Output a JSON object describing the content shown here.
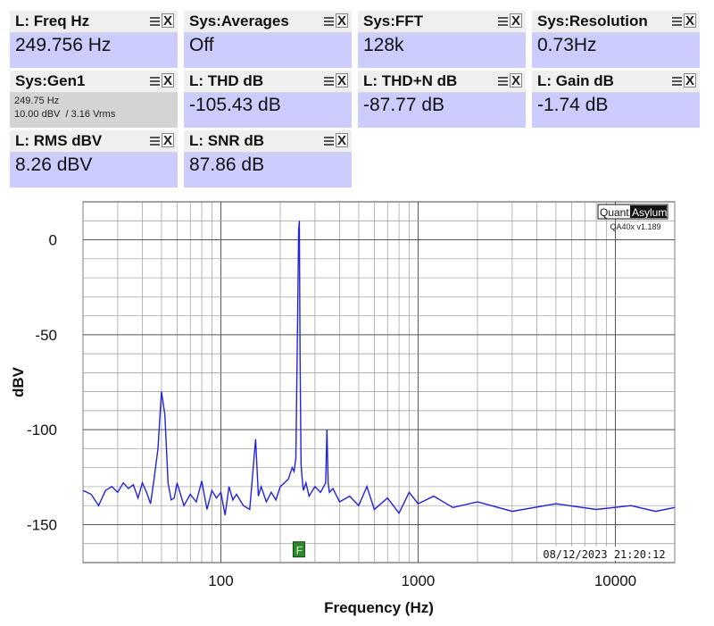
{
  "tiles": [
    {
      "id": "freq",
      "title": "L: Freq Hz",
      "value": "249.756 Hz"
    },
    {
      "id": "avg",
      "title": "Sys:Averages",
      "value": "Off"
    },
    {
      "id": "fft",
      "title": "Sys:FFT",
      "value": "128k"
    },
    {
      "id": "res",
      "title": "Sys:Resolution",
      "value": "0.73Hz"
    },
    {
      "id": "gen",
      "title": "Sys:Gen1",
      "line1": "249.75 Hz",
      "line2": "10.00 dBV  / 3.16 Vrms"
    },
    {
      "id": "thd",
      "title": "L: THD dB",
      "value": "-105.43 dB"
    },
    {
      "id": "thdn",
      "title": "L: THD+N dB",
      "value": "-87.77 dB"
    },
    {
      "id": "gain",
      "title": "L: Gain dB",
      "value": "-1.74 dB"
    },
    {
      "id": "rms",
      "title": "L: RMS dBV",
      "value": "8.26 dBV"
    },
    {
      "id": "snr",
      "title": "L: SNR dB",
      "value": "87.86 dB"
    }
  ],
  "tile_icons": {
    "menu": "hamburger-icon",
    "close": "close-icon",
    "close_glyph": "X"
  },
  "chart_data": {
    "type": "line",
    "xlabel": "Frequency (Hz)",
    "ylabel": "dBV",
    "x_scale": "log",
    "xlim": [
      20,
      20000
    ],
    "ylim": [
      -170,
      20
    ],
    "x_ticks": [
      100,
      1000,
      10000
    ],
    "x_tick_labels": [
      "100",
      "1000",
      "10000"
    ],
    "y_ticks": [
      0,
      -50,
      -100,
      -150
    ],
    "y_tick_labels": [
      "0",
      "-50",
      "-100",
      "-150"
    ],
    "grid": true,
    "brand": {
      "part1": "Quant",
      "part2": "Asylum",
      "version": "QA40x v1.189"
    },
    "timestamp": "08/12/2023 21:20:12",
    "fundamental_marker": {
      "label": "F",
      "x": 250,
      "y": -160
    },
    "line_color": "#2222dd",
    "series": [
      {
        "x": [
          20,
          22,
          24,
          26,
          28,
          30,
          32,
          34,
          36,
          38,
          40,
          42,
          44,
          46,
          48,
          50,
          52,
          54,
          56,
          58,
          60,
          65,
          70,
          75,
          80,
          85,
          90,
          95,
          100,
          105,
          110,
          115,
          120,
          130,
          140,
          150,
          155,
          160,
          170,
          180,
          190,
          200,
          210,
          220,
          230,
          235,
          240,
          245,
          248,
          250,
          252,
          255,
          258,
          262,
          270,
          280,
          300,
          320,
          340,
          345,
          350,
          355,
          370,
          400,
          450,
          500,
          550,
          600,
          700,
          800,
          900,
          1000,
          1200,
          1500,
          2000,
          3000,
          5000,
          8000,
          12000,
          16000,
          20000
        ],
        "y": [
          -132,
          -134,
          -140,
          -132,
          -130,
          -133,
          -128,
          -131,
          -129,
          -136,
          -128,
          -133,
          -139,
          -125,
          -110,
          -80,
          -92,
          -128,
          -137,
          -136,
          -128,
          -140,
          -134,
          -138,
          -127,
          -142,
          -132,
          -136,
          -133,
          -145,
          -130,
          -137,
          -134,
          -140,
          -142,
          -105,
          -135,
          -130,
          -138,
          -133,
          -137,
          -130,
          -128,
          -126,
          -120,
          -122,
          -115,
          -40,
          5,
          10,
          -60,
          -118,
          -125,
          -132,
          -128,
          -135,
          -130,
          -133,
          -128,
          -100,
          -128,
          -133,
          -131,
          -138,
          -135,
          -140,
          -130,
          -142,
          -136,
          -144,
          -133,
          -139,
          -135,
          -141,
          -138,
          -143,
          -139,
          -142,
          -140,
          -143,
          -141
        ]
      }
    ]
  }
}
